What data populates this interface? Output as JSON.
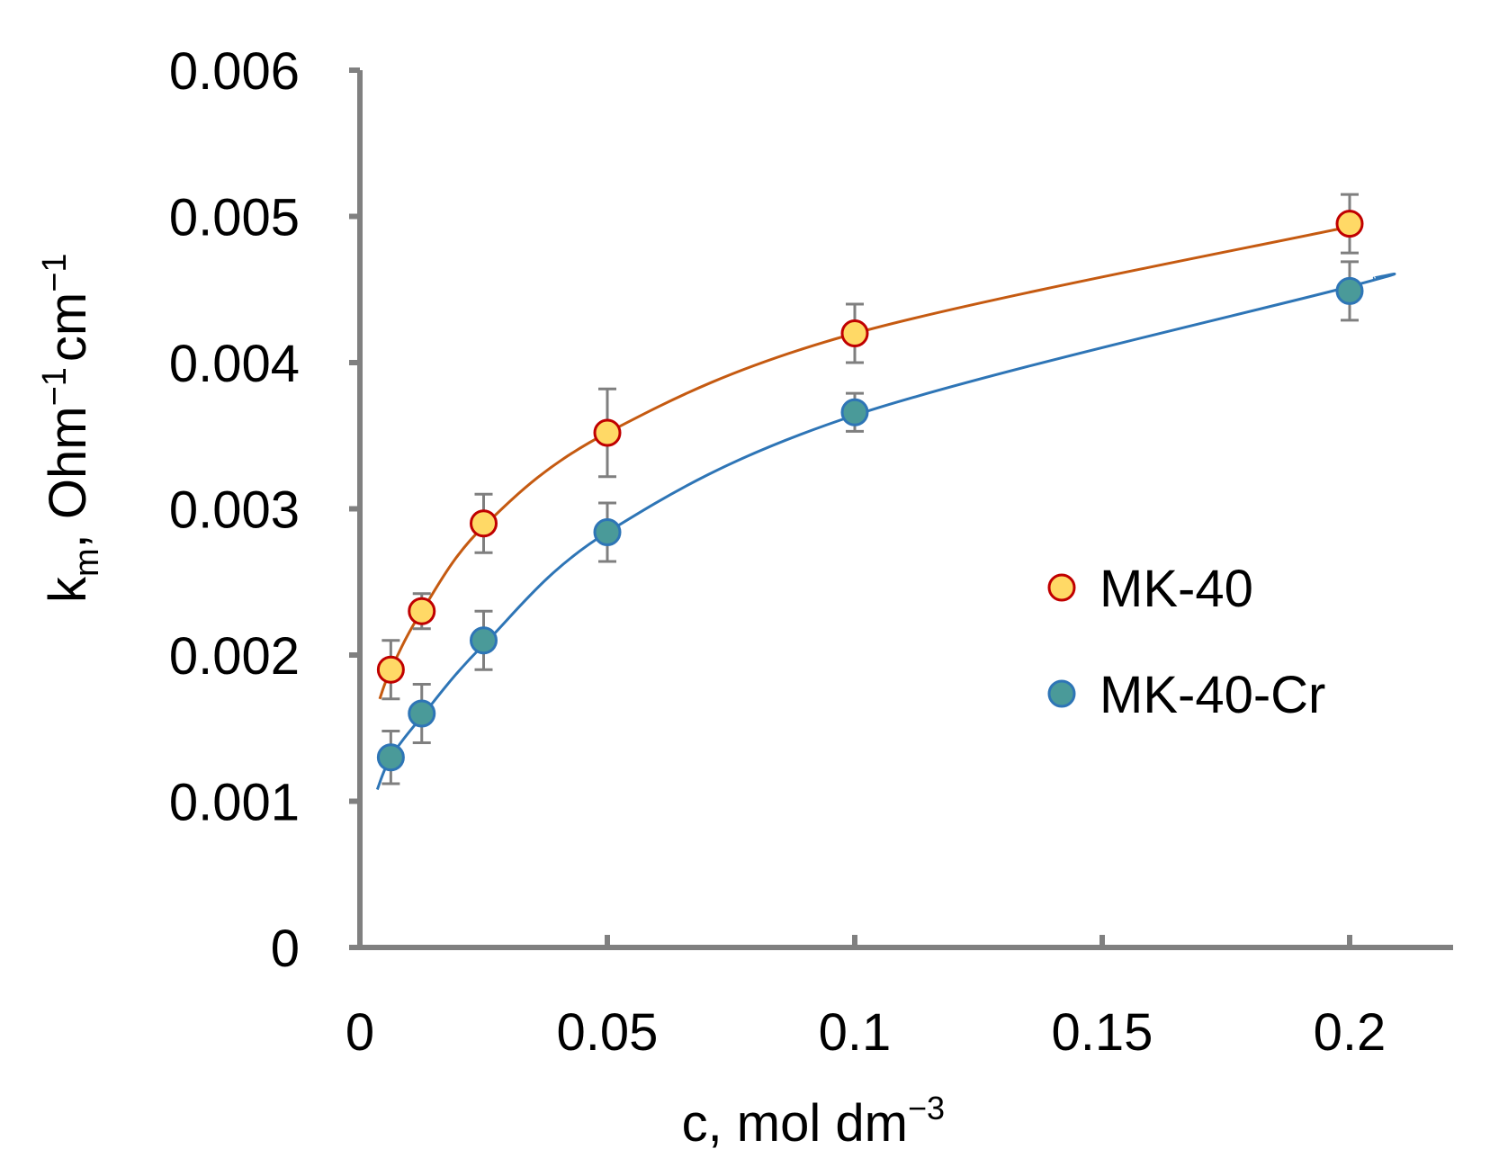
{
  "chart_data": {
    "type": "scatter",
    "xlabel": {
      "base": "c, mol dm",
      "sup": "−3"
    },
    "ylabel": {
      "k": "k",
      "sub": "m",
      "rest": ", Ohm",
      "sup1": "−1",
      "cm": "cm",
      "sup2": "−1"
    },
    "xlim": [
      0,
      0.22
    ],
    "ylim": [
      0,
      0.006
    ],
    "x_ticks": [
      0,
      0.05,
      0.1,
      0.15,
      0.2
    ],
    "x_tick_labels": [
      "0",
      "0.05",
      "0.1",
      "0.15",
      "0.2"
    ],
    "y_ticks": [
      0,
      0.001,
      0.002,
      0.003,
      0.004,
      0.005,
      0.006
    ],
    "y_tick_labels": [
      "0",
      "0.001",
      "0.002",
      "0.003",
      "0.004",
      "0.005",
      "0.006"
    ],
    "grid": false,
    "legend_position": "right",
    "axis_color": "#808080",
    "errorbar_color": "#7f7f7f",
    "series": [
      {
        "name": "MK-40",
        "marker_fill": "#ffd966",
        "marker_edge": "#c00000",
        "line_color": "#c55a11",
        "x": [
          0.00625,
          0.0125,
          0.025,
          0.05,
          0.1,
          0.2
        ],
        "y": [
          0.0019,
          0.0023,
          0.0029,
          0.00352,
          0.0042,
          0.00495
        ],
        "err": [
          0.0002,
          0.00012,
          0.0002,
          0.0003,
          0.0002,
          0.0002
        ],
        "fit_x": [
          0.004,
          0.00625,
          0.0125,
          0.025,
          0.05,
          0.1,
          0.2,
          0.2
        ],
        "fit_y": [
          0.0017,
          0.0019,
          0.0023,
          0.00288,
          0.00352,
          0.0042,
          0.00493,
          0.00493
        ]
      },
      {
        "name": "MK-40-Cr",
        "marker_fill": "#4a9a99",
        "marker_edge": "#2e75b6",
        "line_color": "#2e75b6",
        "x": [
          0.00625,
          0.0125,
          0.025,
          0.05,
          0.1,
          0.2
        ],
        "y": [
          0.0013,
          0.0016,
          0.0021,
          0.00284,
          0.00366,
          0.00449
        ],
        "err": [
          0.00018,
          0.0002,
          0.0002,
          0.0002,
          0.00013,
          0.0002
        ],
        "fit_x": [
          0.0035,
          0.00625,
          0.0125,
          0.025,
          0.05,
          0.1,
          0.2,
          0.205
        ],
        "fit_y": [
          0.00108,
          0.0013,
          0.00158,
          0.00207,
          0.00284,
          0.00364,
          0.00452,
          0.00458
        ]
      }
    ]
  }
}
